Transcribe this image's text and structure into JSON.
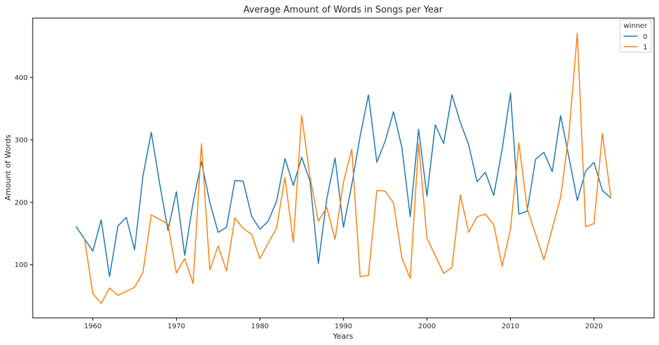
{
  "chart_data": {
    "type": "line",
    "title": "Average Amount of Words in Songs per Year",
    "xlabel": "Years",
    "ylabel": "Amount of Words",
    "xlim": [
      1952.8,
      2027.2
    ],
    "ylim": [
      15,
      495
    ],
    "x_ticks": [
      1960,
      1970,
      1980,
      1990,
      2000,
      2010,
      2020
    ],
    "y_ticks": [
      100,
      200,
      300,
      400
    ],
    "grid": false,
    "legend": {
      "title": "winner",
      "placement": "top-right"
    },
    "series": [
      {
        "name": "0",
        "color": "#1f77b4",
        "x": [
          1958,
          1960,
          1961,
          1962,
          1963,
          1964,
          1965,
          1966,
          1967,
          1968,
          1969,
          1970,
          1971,
          1972,
          1973,
          1974,
          1975,
          1976,
          1977,
          1978,
          1979,
          1980,
          1981,
          1982,
          1983,
          1984,
          1985,
          1986,
          1987,
          1988,
          1989,
          1990,
          1991,
          1992,
          1993,
          1994,
          1995,
          1996,
          1997,
          1998,
          1999,
          2000,
          2001,
          2002,
          2003,
          2004,
          2005,
          2006,
          2007,
          2008,
          2009,
          2010,
          2011,
          2012,
          2013,
          2014,
          2015,
          2016,
          2017,
          2018,
          2019,
          2020,
          2021,
          2022
        ],
        "y": [
          161,
          122,
          172,
          81,
          162,
          176,
          124,
          242,
          312,
          230,
          155,
          217,
          115,
          200,
          265,
          200,
          152,
          160,
          235,
          234,
          178,
          157,
          170,
          202,
          270,
          227,
          272,
          234,
          102,
          205,
          271,
          160,
          228,
          306,
          372,
          264,
          298,
          345,
          288,
          177,
          317,
          210,
          324,
          294,
          372,
          328,
          292,
          233,
          248,
          211,
          285,
          375,
          181,
          186,
          269,
          280,
          249,
          339,
          272,
          203,
          250,
          264,
          219,
          207
        ]
      },
      {
        "name": "1",
        "color": "#ff7f0e",
        "x": [
          1959,
          1960,
          1961,
          1962,
          1963,
          1965,
          1966,
          1967,
          1969,
          1970,
          1971,
          1972,
          1973,
          1974,
          1975,
          1976,
          1977,
          1978,
          1979,
          1980,
          1981,
          1982,
          1983,
          1984,
          1985,
          1986,
          1987,
          1988,
          1989,
          1990,
          1991,
          1992,
          1993,
          1994,
          1995,
          1996,
          1997,
          1998,
          1999,
          2000,
          2002,
          2003,
          2004,
          2005,
          2006,
          2007,
          2008,
          2009,
          2010,
          2011,
          2012,
          2014,
          2016,
          2017,
          2018,
          2019,
          2020,
          2021,
          2022
        ],
        "y": [
          142,
          54,
          38,
          63,
          51,
          64,
          88,
          180,
          165,
          87,
          110,
          70,
          294,
          92,
          130,
          90,
          175,
          158,
          149,
          110,
          135,
          159,
          240,
          136,
          339,
          240,
          170,
          192,
          141,
          232,
          285,
          81,
          83,
          219,
          218,
          199,
          111,
          78,
          294,
          143,
          86,
          96,
          212,
          152,
          177,
          181,
          164,
          98,
          157,
          295,
          190,
          108,
          208,
          310,
          471,
          161,
          166,
          310,
          210
        ]
      }
    ]
  }
}
